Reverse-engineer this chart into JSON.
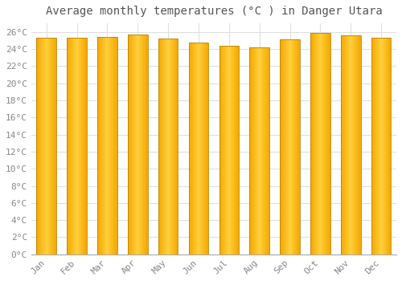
{
  "title": "Average monthly temperatures (°C ) in Danger Utara",
  "months": [
    "Jan",
    "Feb",
    "Mar",
    "Apr",
    "May",
    "Jun",
    "Jul",
    "Aug",
    "Sep",
    "Oct",
    "Nov",
    "Dec"
  ],
  "values": [
    25.3,
    25.3,
    25.4,
    25.7,
    25.2,
    24.8,
    24.4,
    24.2,
    25.1,
    25.9,
    25.6,
    25.3
  ],
  "bar_color_center": "#FFD040",
  "bar_color_edge": "#F5A800",
  "bar_border_color": "#B8860B",
  "background_color": "#FFFFFF",
  "grid_color": "#E0E0E0",
  "ylim": [
    0,
    27
  ],
  "ytick_values": [
    0,
    2,
    4,
    6,
    8,
    10,
    12,
    14,
    16,
    18,
    20,
    22,
    24,
    26
  ],
  "title_fontsize": 10,
  "tick_fontsize": 8,
  "tick_font": "monospace"
}
